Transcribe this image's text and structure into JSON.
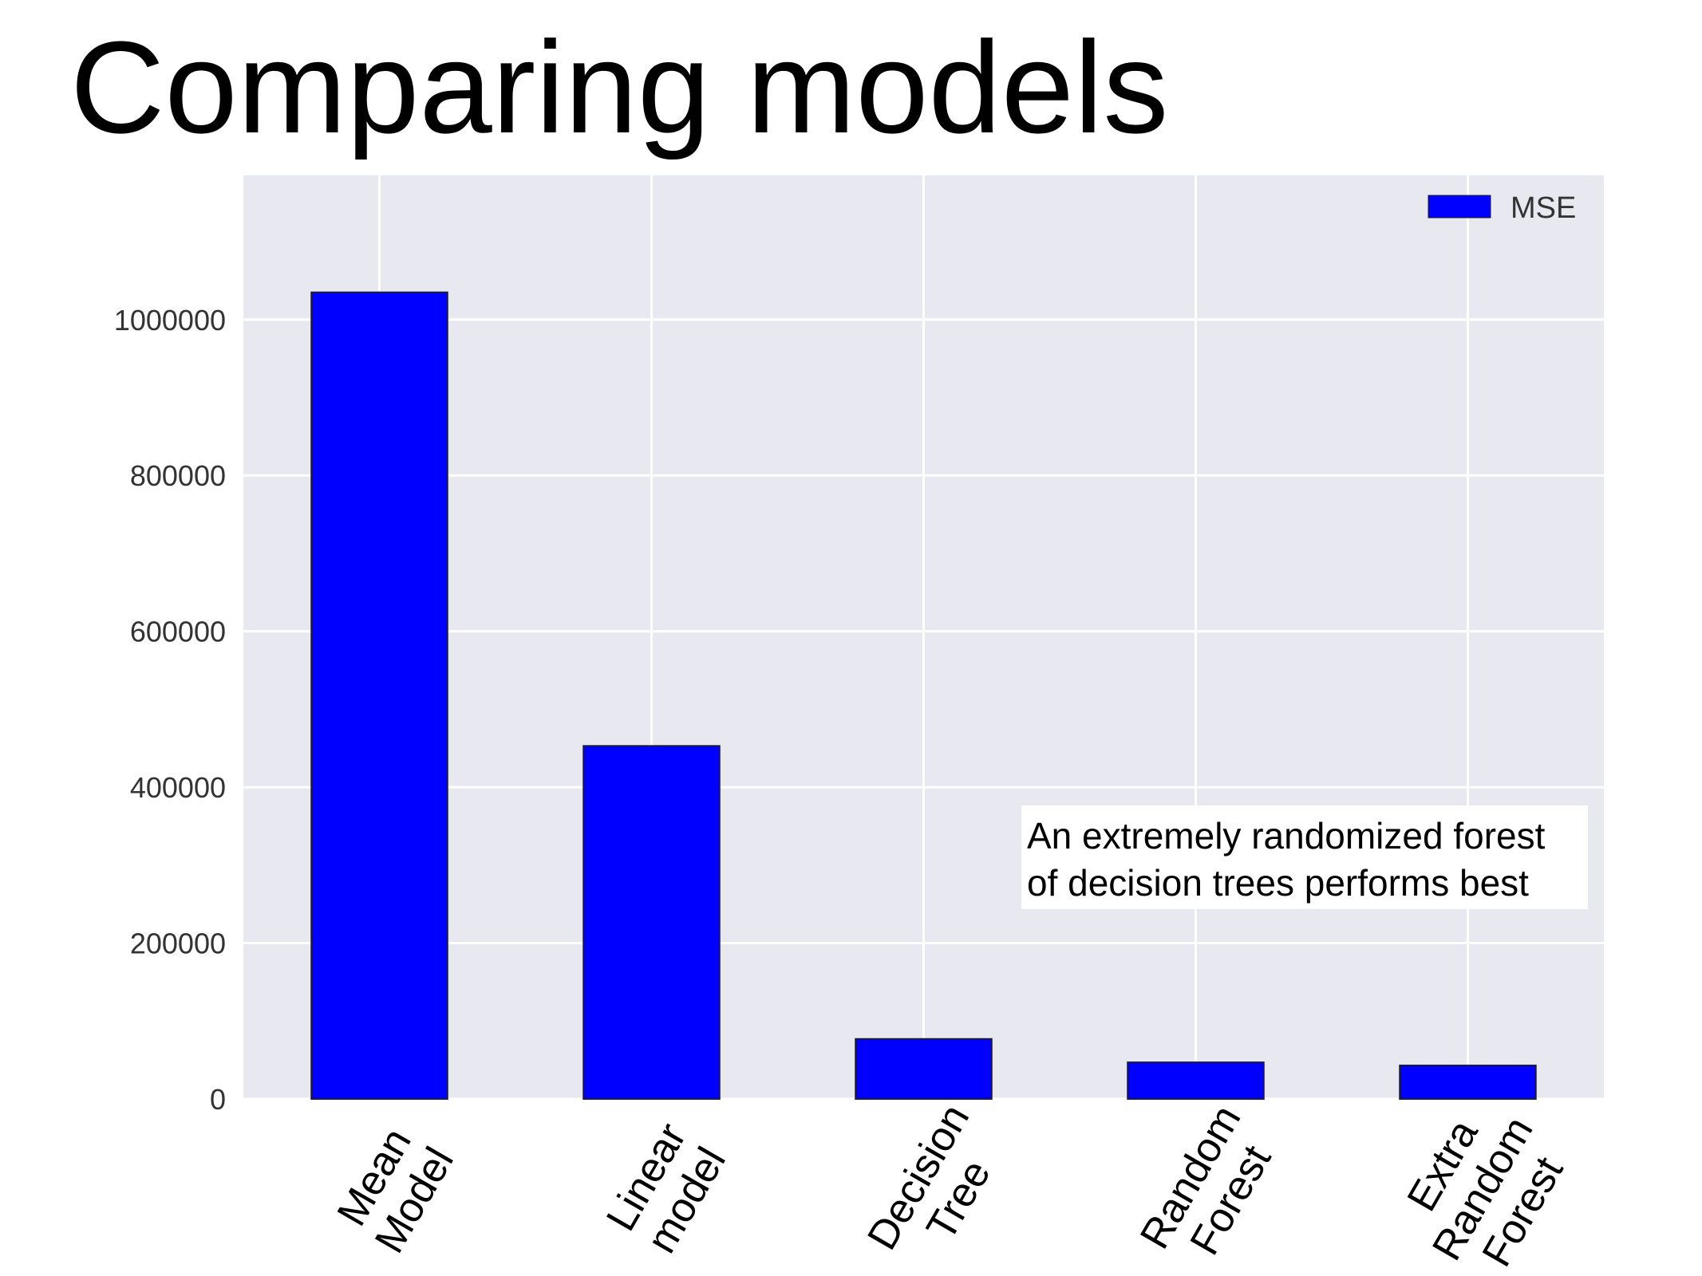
{
  "title": "Comparing models",
  "chart_data": {
    "type": "bar",
    "categories": [
      [
        "Mean",
        "Model"
      ],
      [
        "Linear",
        "model"
      ],
      [
        "Decision",
        "Tree"
      ],
      [
        "Random",
        "Forest"
      ],
      [
        "Extra",
        "Random",
        "Forest"
      ]
    ],
    "series": [
      {
        "name": "MSE",
        "color": "#0000ff",
        "values": [
          1035000,
          453000,
          77000,
          47000,
          43000
        ]
      }
    ],
    "ylim": [
      0,
      1185000
    ],
    "yticks": [
      0,
      200000,
      400000,
      600000,
      800000,
      1000000
    ],
    "ytick_labels": [
      "0",
      "200000",
      "400000",
      "600000",
      "800000",
      "1000000"
    ],
    "legend_position": "top-right",
    "grid": true,
    "background": "#e8e8f0",
    "annotation": {
      "lines": [
        "An extremely randomized forest",
        "of decision trees performs best"
      ],
      "position": "lower-right"
    }
  }
}
